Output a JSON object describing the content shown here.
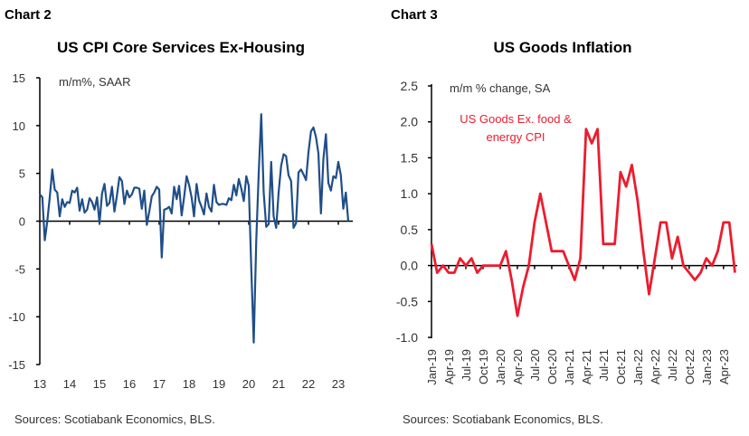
{
  "charts_meta": {
    "left_label": "Chart 2",
    "right_label": "Chart 3"
  },
  "chart_data": [
    {
      "type": "line",
      "title": "US CPI Core Services Ex-Housing",
      "annotation": "m/m%, SAAR",
      "source": "Sources: Scotiabank Economics, BLS.",
      "x_start": "2013-01",
      "frequency": "monthly",
      "x_tick_labels": [
        "13",
        "14",
        "15",
        "16",
        "17",
        "18",
        "19",
        "20",
        "21",
        "22",
        "23"
      ],
      "y_ticks": [
        15,
        10,
        5,
        0,
        -5,
        -10,
        -15
      ],
      "ylim": [
        -15,
        15
      ],
      "color": "#1f4e89",
      "values": [
        2.8,
        2.5,
        -2.0,
        0,
        2.5,
        5.4,
        3.3,
        3.0,
        0.5,
        2.3,
        1.5,
        2.0,
        1.9,
        3.2,
        3.0,
        3.5,
        1.1,
        2.3,
        0.9,
        1.2,
        2.4,
        2.0,
        1.2,
        2.5,
        -0.2,
        2.9,
        3.9,
        1.6,
        1.9,
        3.6,
        1.0,
        2.7,
        4.6,
        4.2,
        1.8,
        3.2,
        2.5,
        2.8,
        3.5,
        3.5,
        3.4,
        1.3,
        3.2,
        -0.4,
        1.0,
        2.6,
        3.0,
        3.6,
        3.3,
        -3.8,
        1.2,
        1.3,
        1.5,
        0.8,
        3.6,
        2.3,
        3.7,
        0.6,
        2.5,
        4.7,
        3.8,
        2.5,
        0.5,
        3.9,
        2.2,
        1.5,
        0.7,
        2.9,
        1.5,
        1.0,
        3.8,
        2.0,
        1.7,
        1.8,
        1.8,
        1.7,
        2.4,
        2.2,
        3.8,
        2.7,
        4.4,
        3.4,
        2.1,
        4.7,
        3.7,
        -5.0,
        -12.7,
        -2.0,
        5.0,
        11.2,
        3.0,
        -0.6,
        -0.3,
        6.2,
        0.5,
        -0.7,
        3.0,
        5.8,
        7.0,
        6.8,
        4.8,
        4.2,
        -0.7,
        -0.2,
        5.1,
        5.4,
        4.9,
        4.3,
        7.2,
        9.4,
        9.8,
        8.8,
        7.1,
        0.8,
        6.5,
        9.1,
        4.0,
        3.2,
        4.7,
        4.5,
        6.2,
        4.8,
        1.3,
        3.0,
        0.0
      ]
    },
    {
      "type": "line",
      "title": "US Goods Inflation",
      "annotation": "m/m % change, SA",
      "series_label": "US Goods Ex. food & energy CPI",
      "series_label_lines": [
        "US Goods Ex. food &",
        "energy CPI"
      ],
      "source": "Sources: Scotiabank Economics, BLS.",
      "x_start": "2019-01",
      "frequency": "monthly",
      "x_tick_labels": [
        "Jan-19",
        "Apr-19",
        "Jul-19",
        "Oct-19",
        "Jan-20",
        "Apr-20",
        "Jul-20",
        "Oct-20",
        "Jan-21",
        "Apr-21",
        "Jul-21",
        "Oct-21",
        "Jan-22",
        "Apr-22",
        "Jul-22",
        "Oct-22",
        "Jan-23",
        "Apr-23"
      ],
      "y_ticks": [
        "2.5",
        "2.0",
        "1.5",
        "1.0",
        "0.5",
        "0.0",
        "-0.5",
        "-1.0"
      ],
      "ylim": [
        -1.0,
        2.5
      ],
      "color": "#ec1c2e",
      "values": [
        0.3,
        -0.1,
        0.0,
        -0.1,
        -0.1,
        0.1,
        0.0,
        0.1,
        -0.1,
        0.0,
        0.0,
        0.0,
        0.0,
        0.2,
        -0.2,
        -0.7,
        -0.3,
        0.0,
        0.6,
        1.0,
        0.6,
        0.2,
        0.2,
        0.2,
        0.0,
        -0.2,
        0.1,
        1.9,
        1.7,
        1.9,
        0.3,
        0.3,
        0.3,
        1.3,
        1.1,
        1.4,
        0.9,
        0.2,
        -0.4,
        0.1,
        0.6,
        0.6,
        0.1,
        0.4,
        0.0,
        -0.1,
        -0.2,
        -0.1,
        0.1,
        0.0,
        0.2,
        0.6,
        0.6,
        -0.1
      ]
    }
  ]
}
